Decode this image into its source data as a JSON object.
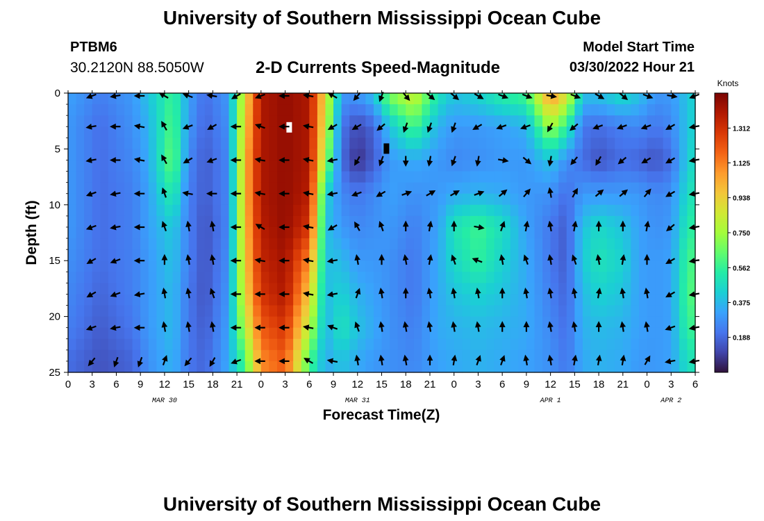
{
  "header": {
    "title": "University of Southern Mississippi Ocean Cube",
    "station_id": "PTBM6",
    "station_coords": "30.2120N  88.5050W",
    "chart_title": "2-D Currents Speed-Magnitude",
    "model_label": "Model Start Time",
    "model_time": "03/30/2022 Hour 21"
  },
  "footer": {
    "title": "University of Southern Mississippi Ocean Cube"
  },
  "chart_data": {
    "type": "heatmap",
    "title": "2-D Currents Speed-Magnitude",
    "xlabel": "Forecast Time(Z)",
    "ylabel": "Depth (ft)",
    "x_tick_labels": [
      "0",
      "3",
      "6",
      "9",
      "12",
      "15",
      "18",
      "21",
      "0",
      "3",
      "6",
      "9",
      "12",
      "15",
      "18",
      "21",
      "0",
      "3",
      "6",
      "9",
      "12",
      "15",
      "18",
      "21",
      "0",
      "3",
      "6"
    ],
    "x_range_hours": [
      0,
      78
    ],
    "date_labels": [
      {
        "text": "MAR 30",
        "hour": 12
      },
      {
        "text": "MAR 31",
        "hour": 36
      },
      {
        "text": "APR 1",
        "hour": 60
      },
      {
        "text": "APR 2",
        "hour": 75
      }
    ],
    "y_ticks": [
      0,
      5,
      10,
      15,
      20,
      25
    ],
    "y_range": [
      0,
      25
    ],
    "colorbar": {
      "unit": "Knots",
      "range": [
        0,
        1.5
      ],
      "ticks": [
        "1.312",
        "1.125",
        "0.938",
        "0.750",
        "0.562",
        "0.375",
        "0.188"
      ],
      "tick_values": [
        1.312,
        1.125,
        0.938,
        0.75,
        0.562,
        0.375,
        0.188
      ],
      "colors": [
        "#30123b",
        "#4145ab",
        "#4675ed",
        "#39a2fc",
        "#1bcfd4",
        "#24eca6",
        "#61fc6c",
        "#a4fc3b",
        "#d1e834",
        "#f3c63a",
        "#fe9b2d",
        "#f36315",
        "#d93806",
        "#b11901",
        "#7a0403"
      ]
    },
    "speed_profiles": {
      "depths": [
        0,
        3,
        6,
        9,
        12,
        15,
        18,
        21,
        24
      ],
      "columns": [
        {
          "hour": 0,
          "speeds": [
            0.32,
            0.3,
            0.3,
            0.3,
            0.3,
            0.28,
            0.26,
            0.24,
            0.2
          ]
        },
        {
          "hour": 4,
          "speeds": [
            0.24,
            0.2,
            0.2,
            0.2,
            0.2,
            0.2,
            0.18,
            0.16,
            0.14
          ]
        },
        {
          "hour": 8,
          "speeds": [
            0.3,
            0.28,
            0.26,
            0.24,
            0.24,
            0.24,
            0.24,
            0.22,
            0.18
          ]
        },
        {
          "hour": 10,
          "speeds": [
            0.4,
            0.36,
            0.34,
            0.32,
            0.32,
            0.3,
            0.3,
            0.3,
            0.28
          ]
        },
        {
          "hour": 13,
          "speeds": [
            0.58,
            0.62,
            0.66,
            0.54,
            0.42,
            0.4,
            0.38,
            0.38,
            0.36
          ]
        },
        {
          "hour": 15,
          "speeds": [
            0.32,
            0.3,
            0.26,
            0.24,
            0.24,
            0.24,
            0.22,
            0.22,
            0.22
          ]
        },
        {
          "hour": 17,
          "speeds": [
            0.2,
            0.18,
            0.16,
            0.16,
            0.14,
            0.14,
            0.14,
            0.16,
            0.18
          ]
        },
        {
          "hour": 20,
          "speeds": [
            0.3,
            0.28,
            0.26,
            0.26,
            0.26,
            0.28,
            0.3,
            0.32,
            0.34
          ]
        },
        {
          "hour": 22,
          "speeds": [
            0.9,
            0.95,
            1.0,
            1.0,
            0.98,
            0.95,
            0.9,
            0.8,
            0.6
          ]
        },
        {
          "hour": 24,
          "speeds": [
            1.4,
            1.4,
            1.4,
            1.4,
            1.38,
            1.35,
            1.3,
            1.2,
            1.1
          ]
        },
        {
          "hour": 27,
          "speeds": [
            1.45,
            1.45,
            1.45,
            1.45,
            1.45,
            1.42,
            1.4,
            1.3,
            1.2
          ]
        },
        {
          "hour": 30,
          "speeds": [
            1.4,
            1.4,
            1.4,
            1.38,
            1.3,
            1.1,
            0.95,
            0.8,
            0.6
          ]
        },
        {
          "hour": 32,
          "speeds": [
            0.9,
            0.85,
            0.75,
            0.45,
            0.4,
            0.4,
            0.38,
            0.36,
            0.34
          ]
        },
        {
          "hour": 34,
          "speeds": [
            0.3,
            0.22,
            0.2,
            0.26,
            0.3,
            0.38,
            0.44,
            0.5,
            0.4
          ]
        },
        {
          "hour": 36,
          "speeds": [
            0.3,
            0.12,
            0.06,
            0.22,
            0.26,
            0.3,
            0.36,
            0.4,
            0.34
          ]
        },
        {
          "hour": 38,
          "speeds": [
            0.4,
            0.18,
            0.16,
            0.26,
            0.28,
            0.3,
            0.32,
            0.34,
            0.3
          ]
        },
        {
          "hour": 40,
          "speeds": [
            0.7,
            0.4,
            0.3,
            0.32,
            0.3,
            0.28,
            0.28,
            0.28,
            0.28
          ]
        },
        {
          "hour": 43,
          "speeds": [
            0.85,
            0.6,
            0.34,
            0.28,
            0.24,
            0.22,
            0.22,
            0.24,
            0.26
          ]
        },
        {
          "hour": 46,
          "speeds": [
            0.5,
            0.36,
            0.3,
            0.3,
            0.32,
            0.34,
            0.34,
            0.34,
            0.32
          ]
        },
        {
          "hour": 48,
          "speeds": [
            0.4,
            0.3,
            0.26,
            0.34,
            0.5,
            0.46,
            0.4,
            0.36,
            0.34
          ]
        },
        {
          "hour": 51,
          "speeds": [
            0.45,
            0.3,
            0.28,
            0.36,
            0.58,
            0.56,
            0.44,
            0.38,
            0.36
          ]
        },
        {
          "hour": 54,
          "speeds": [
            0.55,
            0.32,
            0.3,
            0.34,
            0.48,
            0.44,
            0.4,
            0.36,
            0.34
          ]
        },
        {
          "hour": 57,
          "speeds": [
            0.6,
            0.36,
            0.3,
            0.3,
            0.32,
            0.34,
            0.34,
            0.34,
            0.32
          ]
        },
        {
          "hour": 60,
          "speeds": [
            1.1,
            0.75,
            0.4,
            0.28,
            0.22,
            0.22,
            0.24,
            0.26,
            0.28
          ]
        },
        {
          "hour": 62,
          "speeds": [
            0.9,
            0.55,
            0.28,
            0.2,
            0.16,
            0.16,
            0.18,
            0.2,
            0.22
          ]
        },
        {
          "hour": 64,
          "speeds": [
            0.4,
            0.22,
            0.2,
            0.3,
            0.4,
            0.42,
            0.38,
            0.36,
            0.34
          ]
        },
        {
          "hour": 66,
          "speeds": [
            0.4,
            0.2,
            0.14,
            0.3,
            0.46,
            0.5,
            0.44,
            0.38,
            0.36
          ]
        },
        {
          "hour": 69,
          "speeds": [
            0.48,
            0.24,
            0.2,
            0.3,
            0.4,
            0.44,
            0.4,
            0.36,
            0.34
          ]
        },
        {
          "hour": 71,
          "speeds": [
            0.4,
            0.26,
            0.18,
            0.3,
            0.32,
            0.32,
            0.32,
            0.32,
            0.3
          ]
        },
        {
          "hour": 73,
          "speeds": [
            0.3,
            0.22,
            0.14,
            0.26,
            0.28,
            0.3,
            0.3,
            0.3,
            0.3
          ]
        },
        {
          "hour": 75,
          "speeds": [
            0.3,
            0.26,
            0.2,
            0.28,
            0.3,
            0.32,
            0.32,
            0.32,
            0.32
          ]
        },
        {
          "hour": 77,
          "speeds": [
            0.4,
            0.4,
            0.42,
            0.46,
            0.52,
            0.58,
            0.6,
            0.56,
            0.48
          ]
        },
        {
          "hour": 78,
          "speeds": [
            0.45,
            0.45,
            0.48,
            0.52,
            0.56,
            0.6,
            0.62,
            0.58,
            0.5
          ]
        }
      ]
    },
    "vectors": {
      "depths": [
        0,
        3,
        6,
        9,
        12,
        15,
        18,
        21,
        24
      ],
      "hours": [
        3,
        6,
        9,
        12,
        15,
        18,
        21,
        24,
        27,
        30,
        33,
        36,
        39,
        42,
        45,
        48,
        51,
        54,
        57,
        60,
        63,
        66,
        69,
        72,
        75,
        78
      ],
      "direction_deg": [
        [
          -110,
          -100,
          -90,
          -60,
          -70,
          -80,
          -120,
          -110,
          -90,
          -80,
          -60,
          -140,
          -160,
          140,
          130,
          130,
          120,
          110,
          110,
          100,
          110,
          120,
          130,
          110,
          100,
          -110
        ],
        [
          -100,
          -90,
          -80,
          -30,
          -110,
          -120,
          -90,
          -70,
          -90,
          -80,
          -120,
          -120,
          -130,
          -160,
          -160,
          -160,
          -120,
          -110,
          -110,
          -150,
          -130,
          -110,
          -110,
          -110,
          -120,
          -100
        ],
        [
          -100,
          -90,
          -80,
          -30,
          -120,
          -110,
          -90,
          -80,
          -90,
          -80,
          -100,
          -150,
          -160,
          -180,
          -170,
          -160,
          -170,
          100,
          130,
          -170,
          -140,
          -150,
          -130,
          -120,
          -120,
          -100
        ],
        [
          -110,
          -100,
          -90,
          -20,
          -80,
          -90,
          -90,
          -80,
          -90,
          -80,
          -100,
          -110,
          -120,
          70,
          60,
          60,
          70,
          50,
          40,
          -10,
          30,
          50,
          50,
          40,
          -120,
          -100
        ],
        [
          -110,
          -100,
          -90,
          -20,
          -10,
          -10,
          -90,
          -60,
          -90,
          -80,
          -120,
          -30,
          -20,
          0,
          10,
          0,
          100,
          20,
          10,
          -10,
          10,
          0,
          0,
          10,
          -130,
          -100
        ],
        [
          -120,
          -110,
          -90,
          0,
          -10,
          -10,
          -90,
          -80,
          -90,
          -80,
          -100,
          -10,
          0,
          -10,
          10,
          -20,
          -70,
          -10,
          -20,
          -10,
          -20,
          -10,
          10,
          0,
          -120,
          -100
        ],
        [
          -120,
          -110,
          -100,
          -10,
          -10,
          -20,
          -90,
          -90,
          -90,
          -80,
          -100,
          20,
          -10,
          0,
          -10,
          -10,
          -10,
          0,
          -10,
          -10,
          -10,
          10,
          -10,
          -10,
          -120,
          -100
        ],
        [
          -110,
          -100,
          -90,
          -10,
          -10,
          -10,
          -90,
          -90,
          -90,
          -80,
          -70,
          -20,
          -10,
          -10,
          -10,
          -10,
          -10,
          0,
          0,
          -10,
          -10,
          0,
          -10,
          -10,
          -110,
          -100
        ],
        [
          -140,
          -160,
          -160,
          20,
          -140,
          -150,
          -110,
          -90,
          -90,
          -60,
          -80,
          -10,
          -10,
          -10,
          0,
          10,
          20,
          20,
          -10,
          -10,
          10,
          10,
          10,
          30,
          -100,
          -100
        ]
      ],
      "note": "arrow direction in degrees (0 = up/north, clockwise); estimated from the figure"
    },
    "missing_cells": [
      {
        "hour": 27.5,
        "depth": 3.1,
        "color": "#ffffff"
      },
      {
        "hour": 39.6,
        "depth": 5.0,
        "color": "#000000"
      }
    ]
  }
}
